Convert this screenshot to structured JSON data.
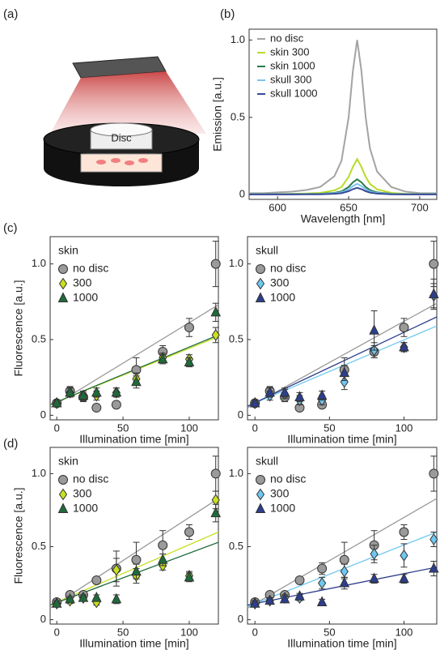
{
  "panel_labels": [
    "(a)",
    "(b)",
    "(c)",
    "(d)"
  ],
  "illustration": {
    "label": "Disc"
  },
  "chart_data": [
    {
      "type": "line",
      "xlabel": "Wavelength [nm]",
      "ylabel": "Emission [a.u.]",
      "x": [
        580,
        590,
        600,
        610,
        620,
        630,
        640,
        645,
        650,
        653,
        656,
        659,
        662,
        665,
        670,
        680,
        690,
        700,
        712
      ],
      "xlim": [
        580,
        712
      ],
      "xticks": [
        600,
        650,
        700
      ],
      "ylim": [
        -0.03,
        1.07
      ],
      "yticks": [
        0,
        0.5,
        {
          "value": 1,
          "label": "1.0"
        }
      ],
      "legend": "upper left",
      "series": [
        {
          "name": "no disc",
          "color": "#a3a3a3",
          "values": [
            0.01,
            0.01,
            0.015,
            0.02,
            0.03,
            0.05,
            0.12,
            0.22,
            0.5,
            0.8,
            1.0,
            0.8,
            0.5,
            0.3,
            0.15,
            0.05,
            0.02,
            0.01,
            0.01
          ]
        },
        {
          "name": "skin 300",
          "color": "#b5dc2a",
          "values": [
            0.005,
            0.005,
            0.005,
            0.006,
            0.008,
            0.012,
            0.028,
            0.05,
            0.115,
            0.18,
            0.23,
            0.18,
            0.115,
            0.07,
            0.035,
            0.012,
            0.006,
            0.005,
            0.005
          ]
        },
        {
          "name": "skin 1000",
          "color": "#2a7a4a",
          "values": [
            0.004,
            0.004,
            0.004,
            0.004,
            0.005,
            0.006,
            0.012,
            0.022,
            0.05,
            0.08,
            0.1,
            0.08,
            0.05,
            0.03,
            0.015,
            0.006,
            0.004,
            0.004,
            0.004
          ]
        },
        {
          "name": "skull 300",
          "color": "#7ac4ee",
          "values": [
            0.003,
            0.003,
            0.003,
            0.003,
            0.004,
            0.005,
            0.009,
            0.016,
            0.035,
            0.056,
            0.07,
            0.056,
            0.035,
            0.021,
            0.011,
            0.005,
            0.003,
            0.003,
            0.003
          ]
        },
        {
          "name": "skull 1000",
          "color": "#3a4a9a",
          "values": [
            0.002,
            0.002,
            0.002,
            0.002,
            0.003,
            0.003,
            0.006,
            0.01,
            0.023,
            0.036,
            0.045,
            0.036,
            0.023,
            0.014,
            0.007,
            0.003,
            0.002,
            0.002,
            0.002
          ]
        }
      ]
    },
    {
      "type": "scatter",
      "title": "skin",
      "xlabel": "Illumination time [min]",
      "ylabel": "Fluorescence [a.u.]",
      "x": [
        0,
        10,
        20,
        30,
        45,
        60,
        80,
        100,
        120
      ],
      "xlim": [
        -5,
        122
      ],
      "xticks": [
        0,
        50,
        100
      ],
      "ylim": [
        -0.03,
        1.18
      ],
      "yticks": [
        0,
        0.5,
        {
          "value": 1,
          "label": "1.0"
        }
      ],
      "series": [
        {
          "name": "no disc",
          "color": "#9a9a9a",
          "marker": "circle",
          "values": [
            0.08,
            0.16,
            0.12,
            0.05,
            0.07,
            0.3,
            0.42,
            0.58,
            1.0
          ],
          "errors": [
            0.02,
            0.03,
            0.03,
            0.02,
            0.02,
            0.08,
            0.04,
            0.06,
            0.15
          ],
          "fit": [
            0.05,
            0.73
          ]
        },
        {
          "name": "300",
          "color": "#c8e020",
          "marker": "diamond",
          "values": [
            0.08,
            0.15,
            0.13,
            0.13,
            0.15,
            0.24,
            0.38,
            0.37,
            0.53
          ],
          "errors": [
            0.02,
            0.03,
            0.03,
            0.03,
            0.03,
            0.04,
            0.03,
            0.03,
            0.05
          ],
          "fit": [
            0.07,
            0.52
          ]
        },
        {
          "name": "1000",
          "color": "#1e6b3a",
          "marker": "triangle",
          "values": [
            0.08,
            0.15,
            0.13,
            0.15,
            0.15,
            0.22,
            0.37,
            0.35,
            0.68
          ],
          "errors": [
            0.02,
            0.03,
            0.03,
            0.03,
            0.03,
            0.04,
            0.03,
            0.03,
            0.06
          ],
          "fit": [
            0.07,
            0.53
          ]
        }
      ]
    },
    {
      "type": "scatter",
      "title": "skull",
      "xlabel": "Illumination time [min]",
      "x": [
        0,
        10,
        20,
        30,
        45,
        60,
        80,
        100,
        120
      ],
      "xlim": [
        -5,
        122
      ],
      "xticks": [
        0,
        50,
        100
      ],
      "ylim": [
        -0.03,
        1.18
      ],
      "yticks": [
        0,
        0.5,
        {
          "value": 1,
          "label": "1.0"
        }
      ],
      "series": [
        {
          "name": "no disc",
          "color": "#9a9a9a",
          "marker": "circle",
          "values": [
            0.08,
            0.16,
            0.12,
            0.05,
            0.07,
            0.3,
            0.42,
            0.58,
            1.0
          ],
          "errors": [
            0.02,
            0.03,
            0.03,
            0.02,
            0.02,
            0.08,
            0.04,
            0.06,
            0.15
          ],
          "fit": [
            0.05,
            0.74
          ]
        },
        {
          "name": "300",
          "color": "#6ec8f0",
          "marker": "diamond",
          "values": [
            0.08,
            0.13,
            0.14,
            0.1,
            0.1,
            0.22,
            0.43,
            0.45,
            0.79
          ],
          "errors": [
            0.02,
            0.03,
            0.03,
            0.03,
            0.03,
            0.05,
            0.05,
            0.03,
            0.08
          ],
          "fit": [
            0.06,
            0.59
          ]
        },
        {
          "name": "1000",
          "color": "#2c3e8c",
          "marker": "triangle",
          "values": [
            0.08,
            0.15,
            0.15,
            0.12,
            0.13,
            0.28,
            0.56,
            0.45,
            0.8
          ],
          "errors": [
            0.02,
            0.03,
            0.03,
            0.03,
            0.03,
            0.05,
            0.13,
            0.03,
            0.1
          ],
          "fit": [
            0.06,
            0.65
          ]
        }
      ]
    },
    {
      "type": "scatter",
      "title": "skin",
      "xlabel": "Illumination time [min]",
      "ylabel": "Fluorescence [a.u.]",
      "x": [
        0,
        10,
        20,
        30,
        45,
        60,
        80,
        100,
        120
      ],
      "xlim": [
        -5,
        122
      ],
      "xticks": [
        0,
        50,
        100
      ],
      "ylim": [
        -0.03,
        1.18
      ],
      "yticks": [
        0,
        0.5,
        {
          "value": 1,
          "label": "1.0"
        }
      ],
      "series": [
        {
          "name": "no disc",
          "color": "#9a9a9a",
          "marker": "circle",
          "values": [
            0.12,
            0.17,
            0.17,
            0.27,
            0.35,
            0.41,
            0.51,
            0.6,
            1.0
          ],
          "errors": [
            0.02,
            0.02,
            0.02,
            0.02,
            0.12,
            0.12,
            0.1,
            0.05,
            0.12
          ],
          "fit": [
            0.08,
            0.83
          ]
        },
        {
          "name": "300",
          "color": "#c8e020",
          "marker": "diamond",
          "values": [
            0.11,
            0.13,
            0.15,
            0.12,
            0.34,
            0.3,
            0.37,
            0.3,
            0.82
          ],
          "errors": [
            0.02,
            0.02,
            0.02,
            0.02,
            0.08,
            0.05,
            0.03,
            0.03,
            0.06
          ],
          "fit": [
            0.1,
            0.6
          ]
        },
        {
          "name": "1000",
          "color": "#1e6b3a",
          "marker": "triangle",
          "values": [
            0.11,
            0.14,
            0.15,
            0.15,
            0.14,
            0.33,
            0.41,
            0.29,
            0.73
          ],
          "errors": [
            0.02,
            0.02,
            0.02,
            0.02,
            0.03,
            0.05,
            0.04,
            0.03,
            0.06
          ],
          "fit": [
            0.1,
            0.53
          ]
        }
      ]
    },
    {
      "type": "scatter",
      "title": "skull",
      "xlabel": "Illumination time [min]",
      "x": [
        0,
        10,
        20,
        30,
        45,
        60,
        80,
        100,
        120
      ],
      "xlim": [
        -5,
        122
      ],
      "xticks": [
        0,
        50,
        100
      ],
      "ylim": [
        -0.03,
        1.18
      ],
      "yticks": [
        0,
        0.5,
        {
          "value": 1,
          "label": "1.0"
        }
      ],
      "series": [
        {
          "name": "no disc",
          "color": "#9a9a9a",
          "marker": "circle",
          "values": [
            0.12,
            0.17,
            0.17,
            0.27,
            0.35,
            0.41,
            0.51,
            0.6,
            1.0
          ],
          "errors": [
            0.02,
            0.02,
            0.02,
            0.02,
            0.04,
            0.12,
            0.1,
            0.05,
            0.12
          ],
          "fit": [
            0.08,
            0.83
          ]
        },
        {
          "name": "300",
          "color": "#6ec8f0",
          "marker": "diamond",
          "values": [
            0.11,
            0.13,
            0.15,
            0.15,
            0.25,
            0.33,
            0.45,
            0.44,
            0.55
          ],
          "errors": [
            0.02,
            0.02,
            0.02,
            0.02,
            0.04,
            0.05,
            0.06,
            0.08,
            0.05
          ],
          "fit": [
            0.09,
            0.6
          ]
        },
        {
          "name": "1000",
          "color": "#2c3e8c",
          "marker": "triangle",
          "values": [
            0.11,
            0.13,
            0.14,
            0.16,
            0.12,
            0.25,
            0.28,
            0.28,
            0.35
          ],
          "errors": [
            0.02,
            0.02,
            0.02,
            0.02,
            0.02,
            0.04,
            0.03,
            0.03,
            0.05
          ],
          "fit": [
            0.1,
            0.36
          ]
        }
      ]
    }
  ]
}
